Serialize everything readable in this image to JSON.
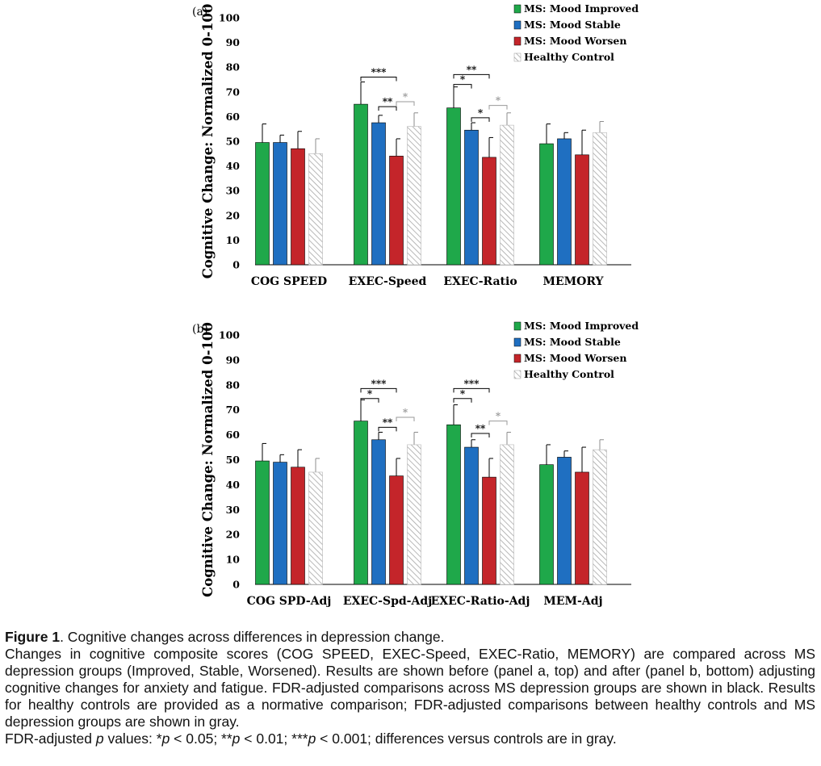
{
  "colors": {
    "improved": "#1fa84a",
    "stable": "#1f6fc1",
    "worsen": "#c4252a",
    "control_hatch": "#a6a6a6",
    "significance_ms": "#000000",
    "significance_control": "#999999"
  },
  "chart_data": [
    {
      "type": "bar",
      "panel_label": "(a)",
      "ylabel": "Cognitive Change: Normalized 0-100",
      "ylim": [
        0,
        100
      ],
      "yticks": [
        0,
        10,
        20,
        30,
        40,
        50,
        60,
        70,
        80,
        90,
        100
      ],
      "categories": [
        "COG SPEED",
        "EXEC-Speed",
        "EXEC-Ratio",
        "MEMORY"
      ],
      "legend_position": "top-right",
      "series": [
        {
          "name": "MS: Mood Improved",
          "key": "improved",
          "values": [
            49.5,
            65,
            63.5,
            49
          ],
          "error": [
            7.5,
            9,
            8.5,
            8
          ]
        },
        {
          "name": "MS: Mood Stable",
          "key": "stable",
          "values": [
            49.5,
            57.5,
            54.5,
            51
          ],
          "error": [
            3,
            3,
            3,
            2.5
          ]
        },
        {
          "name": "MS: Mood Worsen",
          "key": "worsen",
          "values": [
            47,
            44,
            43.5,
            44.5
          ],
          "error": [
            7,
            7,
            8,
            10
          ]
        },
        {
          "name": "Healthy Control",
          "key": "control",
          "values": [
            45,
            56,
            56.5,
            53.5
          ],
          "error": [
            6,
            5.5,
            5,
            4.5
          ]
        }
      ],
      "significance": [
        {
          "category": 1,
          "from": 0,
          "to": 2,
          "label": "***",
          "group": "ms",
          "y": 76
        },
        {
          "category": 1,
          "from": 1,
          "to": 2,
          "label": "**",
          "group": "ms",
          "y": 64
        },
        {
          "category": 1,
          "from": 2,
          "to": 3,
          "label": "*",
          "group": "control",
          "y": 66
        },
        {
          "category": 2,
          "from": 0,
          "to": 2,
          "label": "**",
          "group": "ms",
          "y": 77
        },
        {
          "category": 2,
          "from": 0,
          "to": 1,
          "label": "*",
          "group": "ms",
          "y": 73
        },
        {
          "category": 2,
          "from": 1,
          "to": 2,
          "label": "*",
          "group": "ms",
          "y": 59.5
        },
        {
          "category": 2,
          "from": 2,
          "to": 3,
          "label": "*",
          "group": "control",
          "y": 64.5
        }
      ]
    },
    {
      "type": "bar",
      "panel_label": "(b)",
      "ylabel": "Cognitive Change: Normalized 0-100",
      "ylim": [
        0,
        100
      ],
      "yticks": [
        0,
        10,
        20,
        30,
        40,
        50,
        60,
        70,
        80,
        90,
        100
      ],
      "categories": [
        "COG SPD-Adj",
        "EXEC-Spd-Adj",
        "EXEC-Ratio-Adj",
        "MEM-Adj"
      ],
      "legend_position": "top-right",
      "series": [
        {
          "name": "MS: Mood Improved",
          "key": "improved",
          "values": [
            49.5,
            65.5,
            64,
            48
          ],
          "error": [
            7,
            8.5,
            8,
            8
          ]
        },
        {
          "name": "MS: Mood Stable",
          "key": "stable",
          "values": [
            49,
            58,
            55,
            51
          ],
          "error": [
            3,
            3,
            3,
            2.5
          ]
        },
        {
          "name": "MS: Mood Worsen",
          "key": "worsen",
          "values": [
            47,
            43.5,
            43,
            45
          ],
          "error": [
            7,
            7,
            7.5,
            10
          ]
        },
        {
          "name": "Healthy Control",
          "key": "control",
          "values": [
            45,
            56,
            56,
            54
          ],
          "error": [
            5.5,
            5,
            5,
            4
          ]
        }
      ],
      "significance": [
        {
          "category": 1,
          "from": 0,
          "to": 2,
          "label": "***",
          "group": "ms",
          "y": 78.5
        },
        {
          "category": 1,
          "from": 0,
          "to": 1,
          "label": "*",
          "group": "ms",
          "y": 74.5
        },
        {
          "category": 1,
          "from": 1,
          "to": 2,
          "label": "**",
          "group": "ms",
          "y": 63
        },
        {
          "category": 1,
          "from": 2,
          "to": 3,
          "label": "*",
          "group": "control",
          "y": 67
        },
        {
          "category": 2,
          "from": 0,
          "to": 2,
          "label": "***",
          "group": "ms",
          "y": 78.5
        },
        {
          "category": 2,
          "from": 0,
          "to": 1,
          "label": "*",
          "group": "ms",
          "y": 74.5
        },
        {
          "category": 2,
          "from": 1,
          "to": 2,
          "label": "**",
          "group": "ms",
          "y": 60.5
        },
        {
          "category": 2,
          "from": 2,
          "to": 3,
          "label": "*",
          "group": "control",
          "y": 65.5
        }
      ]
    }
  ],
  "caption": {
    "fig_label": "Figure 1",
    "title_rest": ". Cognitive changes across differences in depression change.",
    "body": "Changes in cognitive composite scores (COG SPEED, EXEC-Speed, EXEC-Ratio, MEMORY) are compared across MS depression groups (Improved, Stable, Worsened). Results are shown before (panel a, top) and after (panel b, bottom) adjusting cognitive changes for anxiety and fatigue. FDR-adjusted comparisons across MS depression groups are shown in black. Results for healthy controls are provided as a normative comparison; FDR-adjusted comparisons between healthy controls and MS depression groups are shown in gray.",
    "pvalues_prefix": "FDR-adjusted",
    "pvalues_p": "p",
    "pvalues_values": "values: *",
    "p1_rest": " < 0.05; **",
    "p2_rest": " < 0.01; ***",
    "p3_rest": " < 0.001; differences versus controls are in gray."
  }
}
